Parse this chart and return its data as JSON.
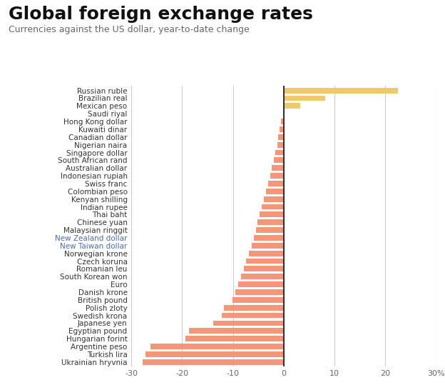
{
  "title": "Global foreign exchange rates",
  "subtitle": "Currencies against the US dollar, year-to-date change",
  "currencies": [
    "Russian ruble",
    "Brazilian real",
    "Mexican peso",
    "Saudi riyal",
    "Hong Kong dollar",
    "Kuwaiti dinar",
    "Canadian dollar",
    "Nigerian naira",
    "Singapore dollar",
    "South African rand",
    "Australian dollar",
    "Indonesian rupiah",
    "Swiss franc",
    "Colombian peso",
    "Kenyan shilling",
    "Indian rupee",
    "Thai baht",
    "Chinese yuan",
    "Malaysian ringgit",
    "New Zealand dollar",
    "New Taiwan dollar",
    "Norwegian krone",
    "Czech koruna",
    "Romanian leu",
    "South Korean won",
    "Euro",
    "Danish krone",
    "British pound",
    "Polish zloty",
    "Swedish krona",
    "Japanese yen",
    "Egyptian pound",
    "Hungarian forint",
    "Argentine peso",
    "Turkish lira",
    "Ukrainian hryvnia"
  ],
  "values": [
    22.5,
    8.2,
    3.2,
    0.0,
    -0.5,
    -0.8,
    -1.1,
    -1.3,
    -1.6,
    -1.9,
    -2.3,
    -2.7,
    -3.1,
    -3.5,
    -3.9,
    -4.3,
    -4.7,
    -5.1,
    -5.5,
    -5.9,
    -6.3,
    -6.9,
    -7.4,
    -7.9,
    -8.4,
    -9.0,
    -9.5,
    -10.1,
    -11.7,
    -12.2,
    -13.8,
    -18.7,
    -19.4,
    -26.2,
    -27.2,
    -27.8
  ],
  "positive_color": "#f0c96e",
  "negative_color": "#f4967a",
  "highlighted_labels": [
    "New Zealand dollar",
    "New Taiwan dollar"
  ],
  "highlight_color": "#4d6baf",
  "normal_label_color": "#333333",
  "xlim_min": -30,
  "xlim_max": 30,
  "xtick_positions": [
    -30,
    -20,
    -10,
    0,
    10,
    20,
    30
  ],
  "xtick_labels": [
    "-30",
    "-20",
    "-10",
    "0",
    "10",
    "20",
    "30%"
  ],
  "background_color": "#ffffff",
  "grid_color": "#cccccc",
  "zero_line_color": "#333333",
  "title_fontsize": 18,
  "subtitle_fontsize": 9,
  "label_fontsize": 7.5,
  "tick_fontsize": 8,
  "bar_height": 0.72
}
